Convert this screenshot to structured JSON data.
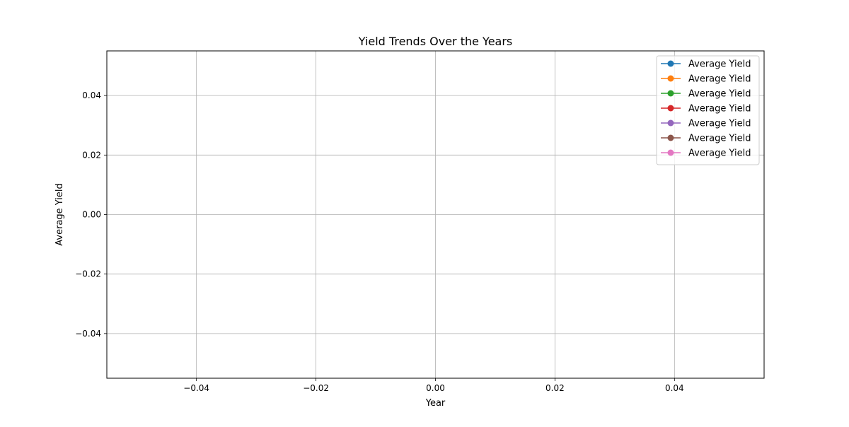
{
  "chart_data": {
    "type": "line",
    "title": "Yield Trends Over the Years",
    "xlabel": "Year",
    "ylabel": "Average Yield",
    "xlim": [
      -0.055,
      0.055
    ],
    "ylim": [
      -0.055,
      0.055
    ],
    "xticks": [
      -0.04,
      -0.02,
      0.0,
      0.02,
      0.04
    ],
    "yticks": [
      -0.04,
      -0.02,
      0.0,
      0.02,
      0.04
    ],
    "xtick_labels": [
      "−0.04",
      "−0.02",
      "0.00",
      "0.02",
      "0.04"
    ],
    "ytick_labels": [
      "−0.04",
      "−0.02",
      "0.00",
      "0.02",
      "0.04"
    ],
    "grid": true,
    "legend_position": "top-right",
    "marker": "circle",
    "series": [
      {
        "name": "Average Yield",
        "color": "#1f77b4",
        "x": [],
        "y": []
      },
      {
        "name": "Average Yield",
        "color": "#ff7f0e",
        "x": [],
        "y": []
      },
      {
        "name": "Average Yield",
        "color": "#2ca02c",
        "x": [],
        "y": []
      },
      {
        "name": "Average Yield",
        "color": "#d62728",
        "x": [],
        "y": []
      },
      {
        "name": "Average Yield",
        "color": "#9467bd",
        "x": [],
        "y": []
      },
      {
        "name": "Average Yield",
        "color": "#8c564b",
        "x": [],
        "y": []
      },
      {
        "name": "Average Yield",
        "color": "#e377c2",
        "x": [],
        "y": []
      }
    ]
  }
}
